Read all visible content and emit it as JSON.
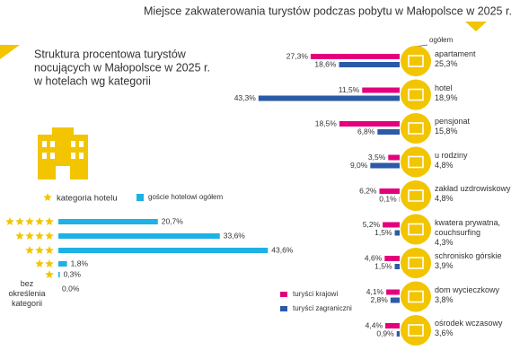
{
  "chart_data": [
    {
      "type": "bar",
      "title": "Miejsce zakwaterowania turystów podczas pobytu w Małopolsce w 2025 r.",
      "categories": [
        "apartament",
        "hotel",
        "pensjonat",
        "u rodziny",
        "zakład uzdrowiskowy",
        "kwatera prywatna, couchsurfing",
        "schronisko górskie",
        "dom wycieczkowy",
        "ośrodek wczasowy"
      ],
      "series": [
        {
          "name": "turyści krajowi",
          "color": "#e4007c",
          "values": [
            27.3,
            11.5,
            18.5,
            3.5,
            6.2,
            5.2,
            4.6,
            4.1,
            4.4
          ],
          "value_labels": [
            "27,3%",
            "11,5%",
            "18,5%",
            "3,5%",
            "6,2%",
            "5,2%",
            "4,6%",
            "4,1%",
            "4,4%"
          ]
        },
        {
          "name": "turyści zagraniczni",
          "color": "#2b5aa6",
          "values": [
            18.6,
            43.3,
            6.8,
            9.0,
            0.1,
            1.5,
            1.5,
            2.8,
            0.9
          ],
          "value_labels": [
            "18,6%",
            "43,3%",
            "6,8%",
            "9,0%",
            "0,1%",
            "1,5%",
            "1,5%",
            "2,8%",
            "0,9%"
          ]
        }
      ],
      "totals": {
        "name": "ogółem",
        "values": [
          25.3,
          18.9,
          15.8,
          4.8,
          4.8,
          4.3,
          3.9,
          3.8,
          3.6
        ],
        "value_labels": [
          "25,3%",
          "18,9%",
          "15,8%",
          "4,8%",
          "4,8%",
          "4,3%",
          "3,9%",
          "3,8%",
          "3,6%"
        ]
      }
    },
    {
      "type": "bar",
      "title": [
        "Struktura procentowa turystów",
        "nocujących w Małopolsce w 2025 r.",
        "w hotelach wg kategorii"
      ],
      "categories": [
        null,
        null,
        null,
        null,
        null,
        "bez określenia kategorii"
      ],
      "stars": [
        5,
        4,
        3,
        2,
        1,
        0
      ],
      "stars_label": "kategoria hotelu",
      "stars_color": "#f2c500",
      "series": [
        {
          "name": "goście hotelowi ogółem",
          "color": "#1eb1e6",
          "values": [
            20.7,
            33.6,
            43.6,
            1.8,
            0.3,
            0.0
          ],
          "value_labels": [
            "20,7%",
            "33,6%",
            "43,6%",
            "1,8%",
            "0,3%",
            "0,0%"
          ]
        }
      ]
    }
  ]
}
